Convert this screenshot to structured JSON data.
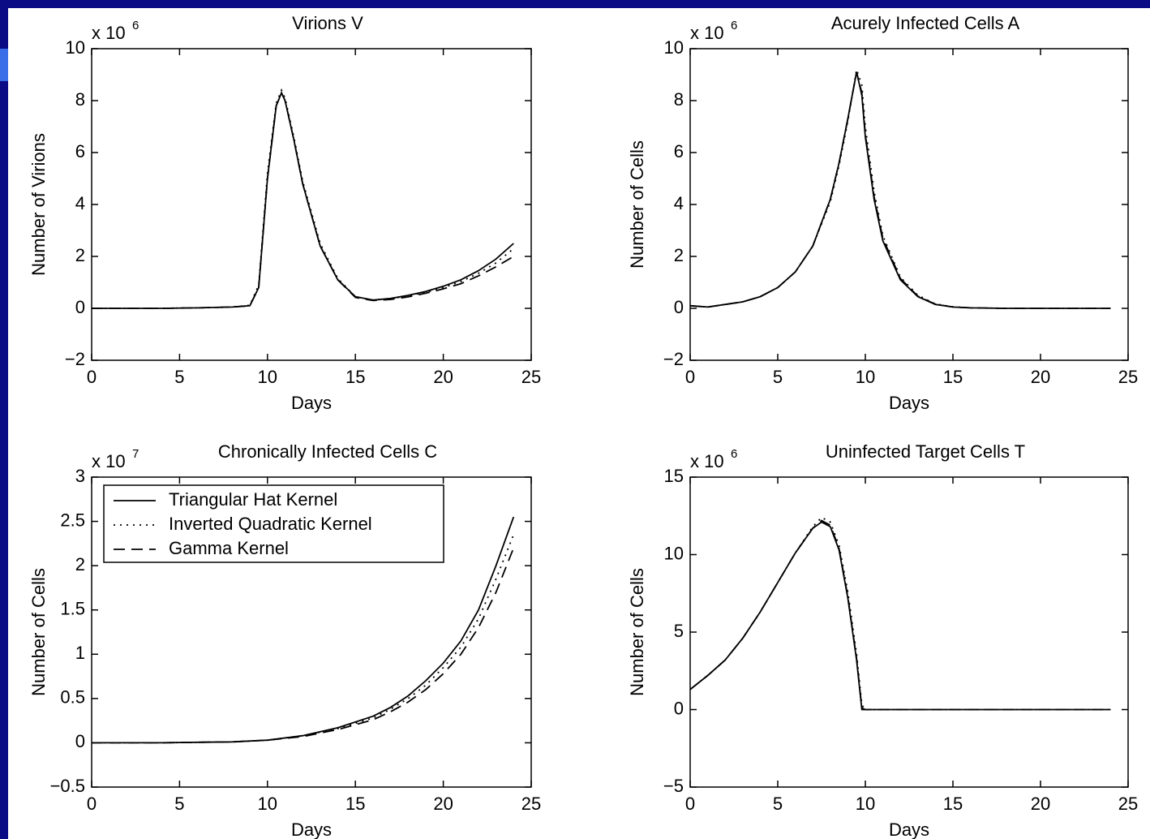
{
  "chart_data": [
    {
      "type": "line",
      "title": "Virions V",
      "xlabel": "Days",
      "ylabel": "Number of Virions",
      "y_multiplier": {
        "base": "x 10",
        "exponent": "6"
      },
      "xlim": [
        0,
        25
      ],
      "xticks": [
        0,
        5,
        10,
        15,
        20,
        25
      ],
      "ylim": [
        -2,
        10
      ],
      "yticks": [
        {
          "value": -2,
          "label": "−2"
        },
        0,
        2,
        4,
        6,
        8,
        10
      ],
      "x": [
        0,
        2,
        4,
        6,
        8,
        9,
        9.5,
        10,
        10.5,
        10.8,
        11,
        11.5,
        12,
        13,
        14,
        15,
        16,
        17,
        18,
        19,
        20,
        21,
        22,
        23,
        24
      ],
      "series": [
        {
          "color": "#000000",
          "dash": "solid",
          "values": [
            0,
            0,
            0,
            0.02,
            0.05,
            0.1,
            0.8,
            5,
            7.8,
            8.3,
            8,
            6.5,
            4.8,
            2.4,
            1.1,
            0.45,
            0.32,
            0.38,
            0.5,
            0.65,
            0.85,
            1.1,
            1.45,
            1.9,
            2.5
          ]
        },
        {
          "color": "#000000",
          "dash": "dotted",
          "values": [
            0,
            0,
            0,
            0.02,
            0.05,
            0.12,
            0.9,
            5.2,
            7.9,
            8.4,
            8.1,
            6.6,
            4.9,
            2.5,
            1.15,
            0.45,
            0.32,
            0.37,
            0.48,
            0.62,
            0.8,
            1.03,
            1.35,
            1.75,
            2.3
          ]
        },
        {
          "color": "#000000",
          "dash": "dashed",
          "values": [
            0,
            0,
            0,
            0.02,
            0.05,
            0.1,
            0.8,
            5,
            7.8,
            8.3,
            8,
            6.5,
            4.8,
            2.4,
            1.1,
            0.42,
            0.3,
            0.34,
            0.44,
            0.58,
            0.75,
            0.95,
            1.25,
            1.6,
            2.0
          ]
        }
      ]
    },
    {
      "type": "line",
      "title": "Acurely Infected Cells A",
      "xlabel": "Days",
      "ylabel": "Number of Cells",
      "y_multiplier": {
        "base": "x 10",
        "exponent": "6"
      },
      "xlim": [
        0,
        25
      ],
      "xticks": [
        0,
        5,
        10,
        15,
        20,
        25
      ],
      "ylim": [
        -2,
        10
      ],
      "yticks": [
        {
          "value": -2,
          "label": "−2"
        },
        0,
        2,
        4,
        6,
        8,
        10
      ],
      "x": [
        0,
        1,
        2,
        3,
        4,
        5,
        6,
        7,
        8,
        8.5,
        9,
        9.5,
        9.8,
        10,
        10.5,
        11,
        12,
        13,
        14,
        15,
        16,
        18,
        20,
        22,
        24
      ],
      "series": [
        {
          "color": "#000000",
          "dash": "solid",
          "values": [
            0.1,
            0.05,
            0.15,
            0.25,
            0.45,
            0.8,
            1.4,
            2.4,
            4.2,
            5.6,
            7.3,
            9.1,
            8.2,
            6.6,
            4.2,
            2.6,
            1.1,
            0.45,
            0.15,
            0.05,
            0.02,
            0,
            0,
            0,
            0
          ]
        },
        {
          "color": "#000000",
          "dash": "dotted",
          "values": [
            0.1,
            0.05,
            0.15,
            0.25,
            0.45,
            0.8,
            1.4,
            2.4,
            4.1,
            5.5,
            7.2,
            9.2,
            8.6,
            7.0,
            4.5,
            2.8,
            1.2,
            0.5,
            0.17,
            0.06,
            0.02,
            0,
            0,
            0,
            0
          ]
        },
        {
          "color": "#000000",
          "dash": "dashed",
          "values": [
            0.1,
            0.05,
            0.15,
            0.25,
            0.45,
            0.8,
            1.4,
            2.4,
            4.2,
            5.6,
            7.3,
            9.1,
            8.3,
            6.7,
            4.3,
            2.7,
            1.15,
            0.47,
            0.16,
            0.05,
            0.02,
            0,
            0,
            0,
            0
          ]
        }
      ]
    },
    {
      "type": "line",
      "title": "Chronically Infected Cells C",
      "xlabel": "Days",
      "ylabel": "Number of Cells",
      "y_multiplier": {
        "base": "x 10",
        "exponent": "7"
      },
      "xlim": [
        0,
        25
      ],
      "xticks": [
        0,
        5,
        10,
        15,
        20,
        25
      ],
      "ylim": [
        -0.5,
        3
      ],
      "yticks": [
        {
          "value": -0.5,
          "label": "−0.5"
        },
        0,
        0.5,
        1,
        1.5,
        2,
        2.5,
        3
      ],
      "legend": "upper left",
      "x": [
        0,
        4,
        8,
        10,
        12,
        14,
        16,
        17,
        18,
        19,
        20,
        21,
        22,
        23,
        24
      ],
      "series": [
        {
          "name": "Triangular Hat Kernel",
          "color": "#000000",
          "dash": "solid",
          "values": [
            0,
            0,
            0.01,
            0.03,
            0.08,
            0.17,
            0.3,
            0.4,
            0.53,
            0.7,
            0.9,
            1.15,
            1.5,
            2.0,
            2.55
          ]
        },
        {
          "name": "Inverted Quadratic Kernel",
          "color": "#000000",
          "dash": "dotted",
          "values": [
            0,
            0,
            0.01,
            0.03,
            0.08,
            0.16,
            0.28,
            0.38,
            0.5,
            0.65,
            0.85,
            1.08,
            1.4,
            1.85,
            2.35
          ]
        },
        {
          "name": "Gamma Kernel",
          "color": "#000000",
          "dash": "dashed",
          "values": [
            0,
            0,
            0.01,
            0.03,
            0.07,
            0.15,
            0.26,
            0.35,
            0.46,
            0.6,
            0.78,
            1.0,
            1.3,
            1.7,
            2.2
          ]
        }
      ]
    },
    {
      "type": "line",
      "title": "Uninfected Target Cells T",
      "xlabel": "Days",
      "ylabel": "Number of Cells",
      "y_multiplier": {
        "base": "x 10",
        "exponent": "6"
      },
      "xlim": [
        0,
        25
      ],
      "xticks": [
        0,
        5,
        10,
        15,
        20,
        25
      ],
      "ylim": [
        -5,
        15
      ],
      "yticks": [
        {
          "value": -5,
          "label": "−5"
        },
        0,
        5,
        10,
        15
      ],
      "x": [
        0,
        1,
        2,
        3,
        4,
        5,
        6,
        7,
        7.5,
        8,
        8.5,
        9,
        9.5,
        9.8,
        10,
        12,
        14,
        16,
        18,
        20,
        22,
        24
      ],
      "series": [
        {
          "color": "#000000",
          "dash": "solid",
          "values": [
            1.3,
            2.2,
            3.2,
            4.6,
            6.3,
            8.2,
            10.1,
            11.7,
            12.1,
            11.8,
            10.3,
            7.2,
            3.2,
            0,
            0,
            0,
            0,
            0,
            0,
            0,
            0,
            0
          ]
        },
        {
          "color": "#000000",
          "dash": "dotted",
          "values": [
            1.3,
            2.2,
            3.2,
            4.6,
            6.3,
            8.2,
            10.1,
            11.8,
            12.4,
            12.1,
            10.6,
            7.6,
            3.6,
            0.3,
            0,
            0,
            0,
            0,
            0,
            0,
            0,
            0
          ]
        },
        {
          "color": "#000000",
          "dash": "dashed",
          "values": [
            1.3,
            2.2,
            3.2,
            4.6,
            6.3,
            8.2,
            10.1,
            11.7,
            12.2,
            11.9,
            10.4,
            7.3,
            3.3,
            0.1,
            0,
            0,
            0,
            0,
            0,
            0,
            0,
            0
          ]
        }
      ]
    }
  ]
}
